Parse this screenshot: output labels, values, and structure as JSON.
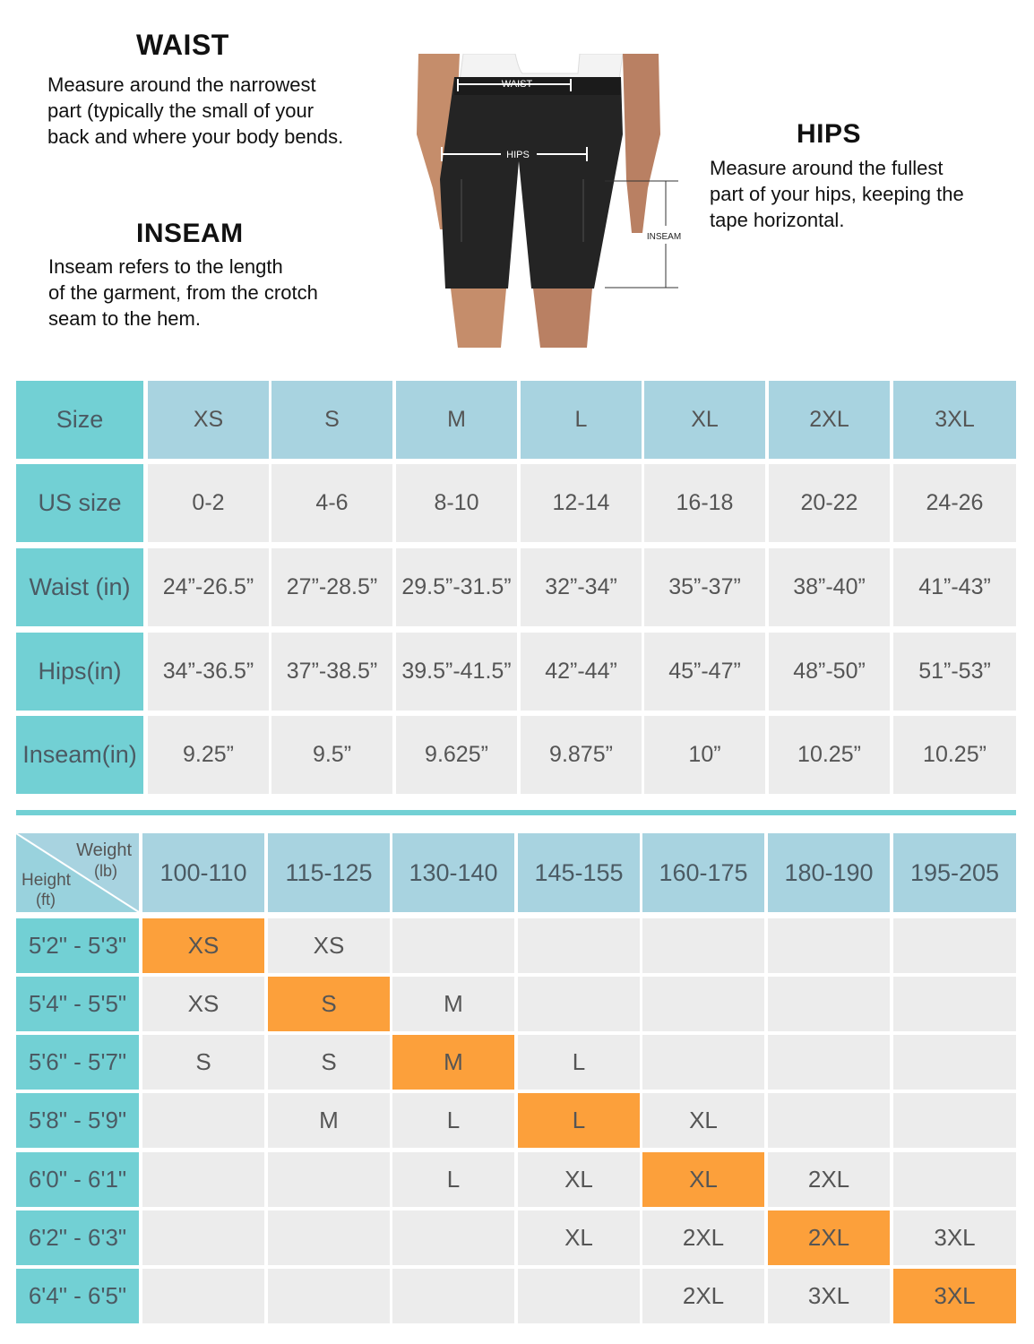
{
  "guide": {
    "waist": {
      "title": "WAIST",
      "lines": [
        "Measure around the narrowest",
        "part (typically the small of your",
        "back and where your body bends."
      ]
    },
    "inseam": {
      "title": "INSEAM",
      "lines": [
        "Inseam refers to the length",
        "of the garment, from the crotch",
        "seam to the hem."
      ]
    },
    "hips": {
      "title": "HIPS",
      "lines": [
        "Measure around the fullest",
        "part of your hips, keeping the",
        "tape horizontal."
      ]
    },
    "figure_labels": {
      "waist": "WAIST",
      "hips": "HIPS",
      "inseam": "INSEAM"
    }
  },
  "size_table": {
    "header": {
      "label": "Size",
      "values": [
        "XS",
        "S",
        "M",
        "L",
        "XL",
        "2XL",
        "3XL"
      ]
    },
    "rows": [
      {
        "label": "US size",
        "values": [
          "0-2",
          "4-6",
          "8-10",
          "12-14",
          "16-18",
          "20-22",
          "24-26"
        ]
      },
      {
        "label": "Waist (in)",
        "values": [
          "24”-26.5”",
          "27”-28.5”",
          "29.5”-31.5”",
          "32”-34”",
          "35”-37”",
          "38”-40”",
          "41”-43”"
        ]
      },
      {
        "label": "Hips(in)",
        "values": [
          "34”-36.5”",
          "37”-38.5”",
          "39.5”-41.5”",
          "42”-44”",
          "45”-47”",
          "48”-50”",
          "51”-53”"
        ]
      },
      {
        "label": "Inseam(in)",
        "values": [
          "9.25”",
          "9.5”",
          "9.625”",
          "9.875”",
          "10”",
          "10.25”",
          "10.25”"
        ]
      }
    ]
  },
  "fit_table": {
    "corner": {
      "weight": "Weight",
      "weight_unit": "(lb)",
      "height": "Height",
      "height_unit": "(ft)"
    },
    "weights": [
      "100-110",
      "115-125",
      "130-140",
      "145-155",
      "160-175",
      "180-190",
      "195-205"
    ],
    "rows": [
      {
        "height": "5'2\" - 5'3\"",
        "sizes": [
          "XS",
          "XS",
          "",
          "",
          "",
          "",
          ""
        ],
        "best": 0
      },
      {
        "height": "5'4\" - 5'5\"",
        "sizes": [
          "XS",
          "S",
          "M",
          "",
          "",
          "",
          ""
        ],
        "best": 1
      },
      {
        "height": "5'6\" - 5'7\"",
        "sizes": [
          "S",
          "S",
          "M",
          "L",
          "",
          "",
          ""
        ],
        "best": 2
      },
      {
        "height": "5'8\" - 5'9\"",
        "sizes": [
          "",
          "M",
          "L",
          "L",
          "XL",
          "",
          ""
        ],
        "best": 3
      },
      {
        "height": "6'0\" - 6'1\"",
        "sizes": [
          "",
          "",
          "L",
          "XL",
          "XL",
          "2XL",
          ""
        ],
        "best": 4
      },
      {
        "height": "6'2\" - 6'3\"",
        "sizes": [
          "",
          "",
          "",
          "XL",
          "2XL",
          "2XL",
          "3XL"
        ],
        "best": 5
      },
      {
        "height": "6'4\" - 6'5\"",
        "sizes": [
          "",
          "",
          "",
          "",
          "2XL",
          "3XL",
          "3XL"
        ],
        "best": 6
      }
    ]
  },
  "colors": {
    "teal": "#72d0d4",
    "light_blue": "#a8d3e0",
    "gray": "#ececec",
    "orange": "#fca03b"
  }
}
